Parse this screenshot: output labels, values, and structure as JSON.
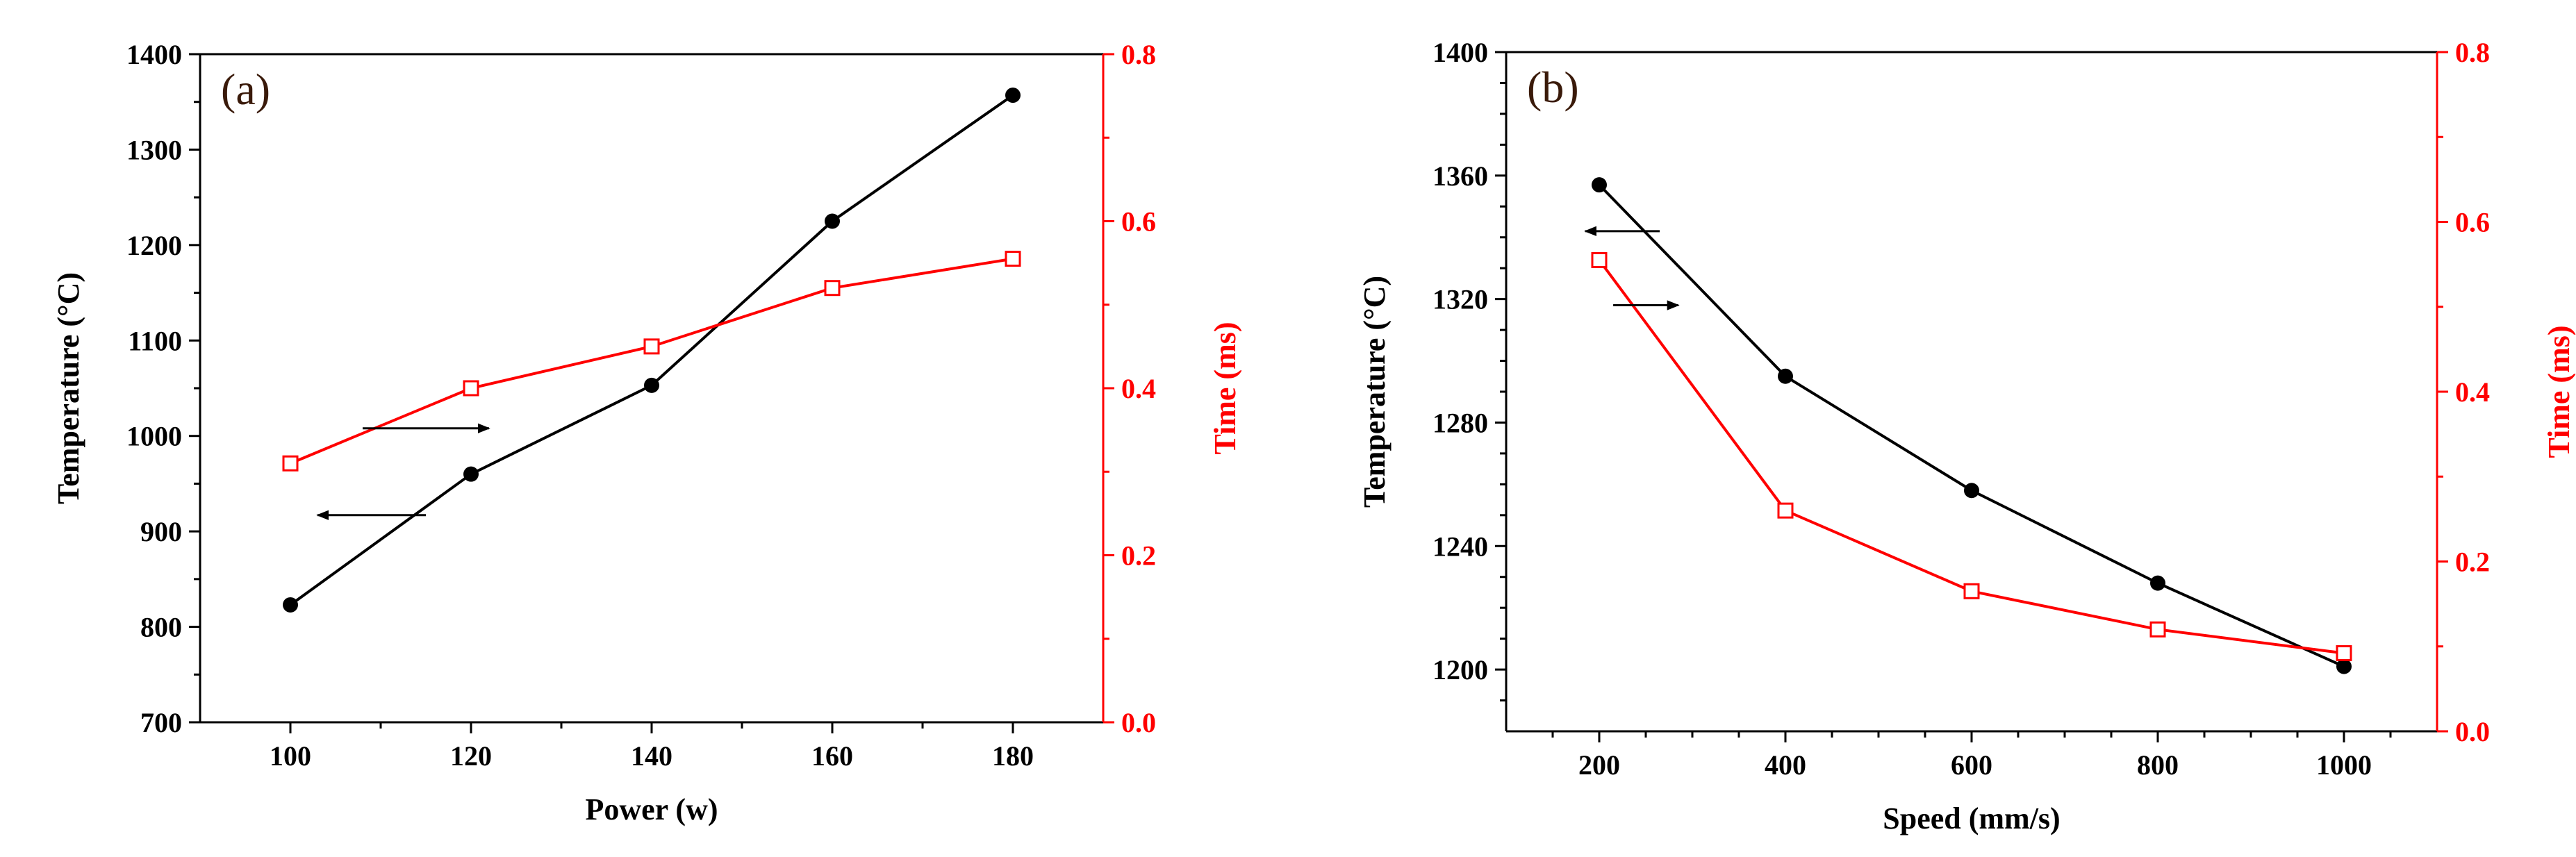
{
  "colors": {
    "temperature": "#000000",
    "time": "#ff0000",
    "axis": "#000000"
  },
  "chart_data": [
    {
      "type": "line",
      "panel_label": "(a)",
      "xlabel": "Power (w)",
      "ylabel_left": "Temperature (°C)",
      "ylabel_right": "Time (ms)",
      "xlim": [
        90,
        190
      ],
      "ylim_left": [
        700,
        1400
      ],
      "ylim_right": [
        0.0,
        0.8
      ],
      "x_ticks": [
        100,
        120,
        140,
        160,
        180
      ],
      "x_tick_labels": [
        "100",
        "120",
        "140",
        "160",
        "180"
      ],
      "x_minor_ticks": [
        110,
        130,
        150,
        170
      ],
      "y_left_ticks": [
        700,
        800,
        900,
        1000,
        1100,
        1200,
        1300,
        1400
      ],
      "y_left_tick_labels": [
        "700",
        "800",
        "900",
        "1000",
        "1100",
        "1200",
        "1300",
        "1400"
      ],
      "y_left_minor_ticks": [
        750,
        850,
        950,
        1050,
        1150,
        1250,
        1350
      ],
      "y_right_ticks": [
        0.0,
        0.2,
        0.4,
        0.6,
        0.8
      ],
      "y_right_tick_labels": [
        "0.0",
        "0.2",
        "0.4",
        "0.6",
        "0.8"
      ],
      "y_right_minor_ticks": [
        0.1,
        0.3,
        0.5,
        0.7
      ],
      "series": [
        {
          "name": "Temperature",
          "axis": "left",
          "marker": "filled-circle",
          "color": "#000000",
          "x": [
            100,
            120,
            140,
            160,
            180
          ],
          "values": [
            823,
            960,
            1053,
            1225,
            1357
          ]
        },
        {
          "name": "Time",
          "axis": "right",
          "marker": "open-square",
          "color": "#ff0000",
          "x": [
            100,
            120,
            140,
            160,
            180
          ],
          "values": [
            0.31,
            0.4,
            0.45,
            0.52,
            0.555
          ]
        }
      ],
      "annotations": [
        {
          "name": "arrow-to-time-axis",
          "direction": "right",
          "x": [
            108,
            122
          ],
          "y_left": 1008
        },
        {
          "name": "arrow-to-temperature-axis",
          "direction": "left",
          "x": [
            115,
            103
          ],
          "y_left": 917
        }
      ]
    },
    {
      "type": "line",
      "panel_label": "(b)",
      "xlabel": "Speed (mm/s)",
      "ylabel_left": "Temperature (°C)",
      "ylabel_right": "Time (ms)",
      "xlim": [
        100,
        1100
      ],
      "ylim_left": [
        1180,
        1400
      ],
      "ylim_right": [
        0.0,
        0.8
      ],
      "x_ticks": [
        200,
        400,
        600,
        800,
        1000
      ],
      "x_tick_labels": [
        "200",
        "400",
        "600",
        "800",
        "1000"
      ],
      "x_minor_ticks": [
        150,
        250,
        300,
        350,
        450,
        500,
        550,
        650,
        700,
        750,
        850,
        900,
        950,
        1050
      ],
      "y_left_ticks": [
        1200,
        1240,
        1280,
        1320,
        1360,
        1400
      ],
      "y_left_tick_labels": [
        "1200",
        "1240",
        "1280",
        "1320",
        "1360",
        "1400"
      ],
      "y_left_minor_ticks": [
        1190,
        1210,
        1220,
        1230,
        1250,
        1260,
        1270,
        1290,
        1300,
        1310,
        1330,
        1340,
        1350,
        1370,
        1380,
        1390
      ],
      "y_right_ticks": [
        0.0,
        0.2,
        0.4,
        0.6,
        0.8
      ],
      "y_right_tick_labels": [
        "0.0",
        "0.2",
        "0.4",
        "0.6",
        "0.8"
      ],
      "y_right_minor_ticks": [
        0.1,
        0.3,
        0.5,
        0.7
      ],
      "series": [
        {
          "name": "Temperature",
          "axis": "left",
          "marker": "filled-circle",
          "color": "#000000",
          "x": [
            200,
            400,
            600,
            800,
            1000
          ],
          "values": [
            1357,
            1295,
            1258,
            1228,
            1201
          ]
        },
        {
          "name": "Time",
          "axis": "right",
          "marker": "open-square",
          "color": "#ff0000",
          "x": [
            200,
            400,
            600,
            800,
            1000
          ],
          "values": [
            0.555,
            0.26,
            0.165,
            0.12,
            0.092
          ]
        }
      ],
      "annotations": [
        {
          "name": "arrow-to-temperature-axis",
          "direction": "left",
          "x": [
            265,
            185
          ],
          "y_left": 1342
        },
        {
          "name": "arrow-to-time-axis",
          "direction": "right",
          "x": [
            215,
            285
          ],
          "y_left": 1318
        }
      ]
    }
  ]
}
